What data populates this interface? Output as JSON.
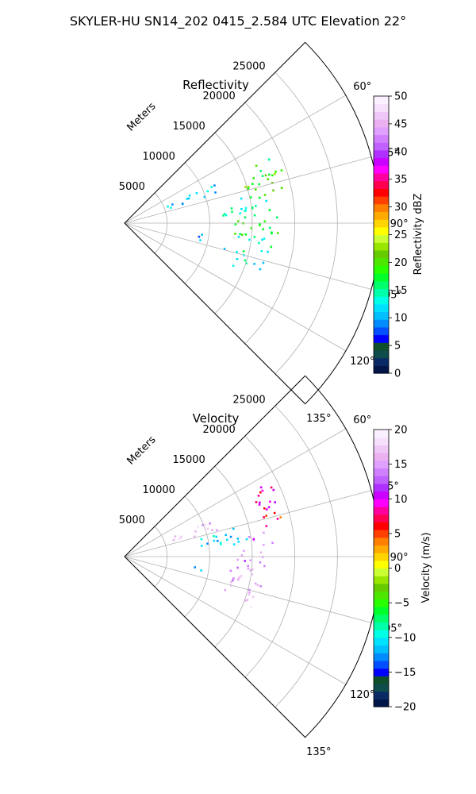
{
  "figure": {
    "suptitle": "SKYLER-HU  SN14_202  0415_2.584 UTC Elevation 22°"
  },
  "chart_data": [
    {
      "type": "polar-sector",
      "title": "Reflectivity",
      "radial_label": "Meters",
      "theta_range_deg": [
        45,
        135
      ],
      "r_max": 30000,
      "r_ticks": [
        5000,
        10000,
        15000,
        20000,
        25000
      ],
      "r_tick_labels": [
        "5000",
        "10000",
        "15000",
        "20000",
        "25000"
      ],
      "theta_ticks": [
        60,
        75,
        90,
        105,
        120,
        135
      ],
      "theta_tick_labels": [
        "60°",
        "75°",
        "90°",
        "105°",
        "120°",
        "135°"
      ],
      "grid": true,
      "colorbar": {
        "label": "Reflectivity dBZ",
        "range": [
          0,
          50
        ],
        "ticks": [
          0,
          5,
          10,
          15,
          20,
          25,
          30,
          35,
          40,
          45,
          50
        ],
        "tick_labels": [
          "0",
          "5",
          "10",
          "15",
          "20",
          "25",
          "30",
          "35",
          "40",
          "45",
          "50"
        ],
        "colors": [
          "#03164a",
          "#0a2a66",
          "#0f4c4c",
          "#104f2c",
          "#0000ff",
          "#0050ff",
          "#008cff",
          "#00bfff",
          "#00e1ff",
          "#00ffe6",
          "#00ffa8",
          "#00ff6a",
          "#00ff2a",
          "#2aff00",
          "#4de600",
          "#66cc00",
          "#99e600",
          "#ccff33",
          "#ffff00",
          "#ffd400",
          "#ffaa00",
          "#ff7f00",
          "#ff4000",
          "#ff0000",
          "#ff0050",
          "#ff00a0",
          "#ff00ff",
          "#cc00ff",
          "#b030ff",
          "#c060ff",
          "#d080ff",
          "#e0a0ff",
          "#eab0f0",
          "#f0c8f8",
          "#f7e0fc",
          "#fbf0ff"
        ]
      },
      "echo_regions": [
        {
          "theta": [
            70,
            80
          ],
          "r": [
            14500,
            19500
          ],
          "value": 20
        },
        {
          "theta": [
            66,
            74
          ],
          "r": [
            15000,
            19500
          ],
          "value": 18
        },
        {
          "theta": [
            78,
            86
          ],
          "r": [
            11000,
            17500
          ],
          "value": 14
        },
        {
          "theta": [
            86,
            96
          ],
          "r": [
            13000,
            18500
          ],
          "value": 18
        },
        {
          "theta": [
            96,
            104
          ],
          "r": [
            13500,
            17500
          ],
          "value": 14
        },
        {
          "theta": [
            104,
            112
          ],
          "r": [
            12000,
            17000
          ],
          "value": 13
        },
        {
          "theta": [
            66,
            72
          ],
          "r": [
            5000,
            12000
          ],
          "value": 11
        },
        {
          "theta": [
            98,
            104
          ],
          "r": [
            8000,
            9500
          ],
          "value": 9
        }
      ]
    },
    {
      "type": "polar-sector",
      "title": "Velocity",
      "radial_label": "Meters",
      "theta_range_deg": [
        45,
        135
      ],
      "r_max": 30000,
      "r_ticks": [
        5000,
        10000,
        15000,
        20000,
        25000
      ],
      "r_tick_labels": [
        "5000",
        "10000",
        "15000",
        "20000",
        "25000"
      ],
      "theta_ticks": [
        60,
        75,
        90,
        105,
        120,
        135
      ],
      "theta_tick_labels": [
        "60°",
        "75°",
        "90°",
        "105°",
        "120°",
        "135°"
      ],
      "grid": true,
      "colorbar": {
        "label": "Velocity (m/s)",
        "range": [
          -20,
          20
        ],
        "ticks": [
          -20,
          -15,
          -10,
          -5,
          0,
          5,
          10,
          15,
          20
        ],
        "tick_labels": [
          "−20",
          "−15",
          "−10",
          "−5",
          "0",
          "5",
          "10",
          "15",
          "20"
        ],
        "colors": [
          "#03164a",
          "#0a2a66",
          "#0f4c4c",
          "#104f2c",
          "#0000ff",
          "#0050ff",
          "#008cff",
          "#00bfff",
          "#00e1ff",
          "#00ffe6",
          "#00ffa8",
          "#00ff6a",
          "#00ff2a",
          "#2aff00",
          "#4de600",
          "#66cc00",
          "#99e600",
          "#ccff33",
          "#ffff00",
          "#ffd400",
          "#ffaa00",
          "#ff7f00",
          "#ff4000",
          "#ff0000",
          "#ff0050",
          "#ff00a0",
          "#ff00ff",
          "#cc00ff",
          "#b030ff",
          "#c060ff",
          "#d080ff",
          "#e0a0ff",
          "#eab0f0",
          "#f0c8f8",
          "#f7e0fc",
          "#fbf0ff"
        ]
      },
      "echo_regions": [
        {
          "theta": [
            63,
            72
          ],
          "r": [
            15500,
            19500
          ],
          "value": 9
        },
        {
          "theta": [
            70,
            78
          ],
          "r": [
            16500,
            19500
          ],
          "value": 6
        },
        {
          "theta": [
            78,
            86
          ],
          "r": [
            14500,
            17500
          ],
          "value": 13
        },
        {
          "theta": [
            68,
            74
          ],
          "r": [
            5500,
            12000
          ],
          "value": 16
        },
        {
          "theta": [
            74,
            84
          ],
          "r": [
            9000,
            14500
          ],
          "value": -11
        },
        {
          "theta": [
            86,
            96
          ],
          "r": [
            13000,
            17000
          ],
          "value": 14
        },
        {
          "theta": [
            96,
            104
          ],
          "r": [
            12500,
            16500
          ],
          "value": 15
        },
        {
          "theta": [
            104,
            112
          ],
          "r": [
            11500,
            16000
          ],
          "value": 16
        },
        {
          "theta": [
            98,
            104
          ],
          "r": [
            8000,
            9500
          ],
          "value": -12
        }
      ]
    }
  ]
}
